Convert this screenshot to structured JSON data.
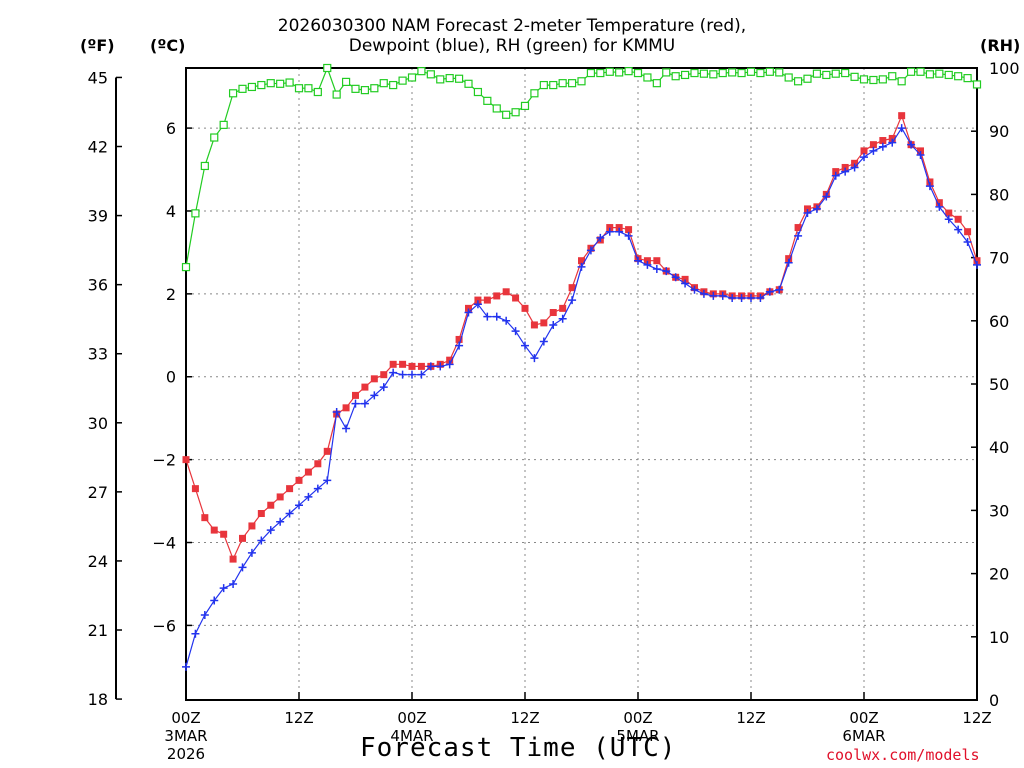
{
  "title": {
    "line1": "2026030300 NAM Forecast 2-meter Temperature (red),",
    "line2": "Dewpoint (blue), RH (green) for KMMU"
  },
  "units": {
    "fahrenheit": "(ºF)",
    "celsius": "(ºC)",
    "rh": "(RH)"
  },
  "credit": "coolwx.com/models",
  "colors": {
    "temperature": "#e8353c",
    "dewpoint": "#2233ee",
    "rh": "#22cc22",
    "grid": "#888888"
  },
  "chart_data": {
    "type": "line",
    "title": "2026030300 NAM Forecast 2-meter Temperature (red), Dewpoint (blue), RH (green) for KMMU",
    "xlabel": "Forecast Time (UTC)",
    "x_unit": "forecast hour from 2026-03-03 00Z",
    "xlim": [
      0,
      84
    ],
    "x_ticks": [
      {
        "x": 0,
        "label": "00Z",
        "date": "3MAR",
        "year": "2026"
      },
      {
        "x": 12,
        "label": "12Z"
      },
      {
        "x": 24,
        "label": "00Z",
        "date": "4MAR"
      },
      {
        "x": 36,
        "label": "12Z"
      },
      {
        "x": 48,
        "label": "00Z",
        "date": "5MAR"
      },
      {
        "x": 60,
        "label": "12Z"
      },
      {
        "x": 72,
        "label": "00Z",
        "date": "6MAR"
      },
      {
        "x": 84,
        "label": "12Z"
      }
    ],
    "y_left_celsius": {
      "ylim": [
        -7.8,
        7.45
      ],
      "ticks": [
        -6,
        -4,
        -2,
        0,
        2,
        4,
        6
      ]
    },
    "y_left_fahrenheit": {
      "ticks": [
        18,
        21,
        24,
        27,
        30,
        33,
        36,
        39,
        42,
        45
      ]
    },
    "y_right_rh": {
      "ylim": [
        0,
        100
      ],
      "ticks": [
        0,
        10,
        20,
        30,
        40,
        50,
        60,
        70,
        80,
        90,
        100
      ]
    },
    "grid": true,
    "series": [
      {
        "name": "Temperature",
        "unit": "°C",
        "axis": "left",
        "color": "#e8353c",
        "marker": "square",
        "x": [
          0,
          1,
          2,
          3,
          4,
          5,
          6,
          7,
          8,
          9,
          10,
          11,
          12,
          13,
          14,
          15,
          16,
          17,
          18,
          19,
          20,
          21,
          22,
          23,
          24,
          25,
          26,
          27,
          28,
          29,
          30,
          31,
          32,
          33,
          34,
          35,
          36,
          37,
          38,
          39,
          40,
          41,
          42,
          43,
          44,
          45,
          46,
          47,
          48,
          49,
          50,
          51,
          52,
          53,
          54,
          55,
          56,
          57,
          58,
          59,
          60,
          61,
          62,
          63,
          64,
          65,
          66,
          67,
          68,
          69,
          70,
          71,
          72,
          73,
          74,
          75,
          76,
          77,
          78,
          79,
          80,
          81,
          82,
          83,
          84
        ],
        "values": [
          -2.0,
          -2.7,
          -3.4,
          -3.7,
          -3.8,
          -4.4,
          -3.9,
          -3.6,
          -3.3,
          -3.1,
          -2.9,
          -2.7,
          -2.5,
          -2.3,
          -2.1,
          -1.8,
          -0.9,
          -0.75,
          -0.45,
          -0.25,
          -0.05,
          0.05,
          0.3,
          0.3,
          0.25,
          0.25,
          0.25,
          0.3,
          0.4,
          0.9,
          1.65,
          1.85,
          1.85,
          1.95,
          2.05,
          1.9,
          1.65,
          1.25,
          1.3,
          1.55,
          1.65,
          2.15,
          2.8,
          3.1,
          3.3,
          3.6,
          3.6,
          3.55,
          2.85,
          2.8,
          2.8,
          2.55,
          2.4,
          2.35,
          2.15,
          2.05,
          2.0,
          2.0,
          1.95,
          1.95,
          1.95,
          1.95,
          2.05,
          2.1,
          2.85,
          3.6,
          4.05,
          4.1,
          4.4,
          4.95,
          5.05,
          5.15,
          5.45,
          5.6,
          5.7,
          5.75,
          6.3,
          5.6,
          5.45,
          4.7,
          4.2,
          3.95,
          3.8,
          3.5,
          2.8
        ]
      },
      {
        "name": "Dewpoint",
        "unit": "°C",
        "axis": "left",
        "color": "#2233ee",
        "marker": "plus",
        "x": [
          0,
          1,
          2,
          3,
          4,
          5,
          6,
          7,
          8,
          9,
          10,
          11,
          12,
          13,
          14,
          15,
          16,
          17,
          18,
          19,
          20,
          21,
          22,
          23,
          24,
          25,
          26,
          27,
          28,
          29,
          30,
          31,
          32,
          33,
          34,
          35,
          36,
          37,
          38,
          39,
          40,
          41,
          42,
          43,
          44,
          45,
          46,
          47,
          48,
          49,
          50,
          51,
          52,
          53,
          54,
          55,
          56,
          57,
          58,
          59,
          60,
          61,
          62,
          63,
          64,
          65,
          66,
          67,
          68,
          69,
          70,
          71,
          72,
          73,
          74,
          75,
          76,
          77,
          78,
          79,
          80,
          81,
          82,
          83,
          84
        ],
        "values": [
          -7.0,
          -6.2,
          -5.75,
          -5.4,
          -5.1,
          -5.0,
          -4.6,
          -4.25,
          -3.95,
          -3.7,
          -3.5,
          -3.3,
          -3.1,
          -2.9,
          -2.7,
          -2.5,
          -0.85,
          -1.25,
          -0.65,
          -0.65,
          -0.45,
          -0.25,
          0.1,
          0.05,
          0.05,
          0.05,
          0.25,
          0.25,
          0.3,
          0.75,
          1.55,
          1.75,
          1.45,
          1.45,
          1.35,
          1.1,
          0.75,
          0.45,
          0.85,
          1.25,
          1.4,
          1.85,
          2.65,
          3.05,
          3.35,
          3.5,
          3.5,
          3.4,
          2.8,
          2.7,
          2.6,
          2.55,
          2.4,
          2.25,
          2.1,
          2.0,
          1.95,
          1.95,
          1.9,
          1.9,
          1.9,
          1.9,
          2.05,
          2.1,
          2.75,
          3.4,
          3.95,
          4.05,
          4.35,
          4.85,
          4.95,
          5.05,
          5.3,
          5.45,
          5.55,
          5.65,
          6.0,
          5.6,
          5.35,
          4.6,
          4.1,
          3.8,
          3.55,
          3.25,
          2.7
        ]
      },
      {
        "name": "RH",
        "unit": "%",
        "axis": "right",
        "color": "#22cc22",
        "marker": "open-square",
        "x": [
          0,
          1,
          2,
          3,
          4,
          5,
          6,
          7,
          8,
          9,
          10,
          11,
          12,
          13,
          14,
          15,
          16,
          17,
          18,
          19,
          20,
          21,
          22,
          23,
          24,
          25,
          26,
          27,
          28,
          29,
          30,
          31,
          32,
          33,
          34,
          35,
          36,
          37,
          38,
          39,
          40,
          41,
          42,
          43,
          44,
          45,
          46,
          47,
          48,
          49,
          50,
          51,
          52,
          53,
          54,
          55,
          56,
          57,
          58,
          59,
          60,
          61,
          62,
          63,
          64,
          65,
          66,
          67,
          68,
          69,
          70,
          71,
          72,
          73,
          74,
          75,
          76,
          77,
          78,
          79,
          80,
          81,
          82,
          83,
          84
        ],
        "values": [
          68.5,
          77,
          84.5,
          89,
          91,
          96,
          96.7,
          97,
          97.3,
          97.6,
          97.5,
          97.7,
          96.8,
          96.8,
          96.2,
          100,
          95.8,
          97.8,
          96.7,
          96.5,
          96.8,
          97.6,
          97.3,
          98,
          98.5,
          99.5,
          99,
          98.2,
          98.4,
          98.3,
          97.5,
          96.2,
          94.8,
          93.6,
          92.6,
          93,
          94,
          96,
          97.3,
          97.3,
          97.6,
          97.6,
          97.9,
          99.2,
          99.2,
          99.4,
          99.3,
          99.5,
          99.2,
          98.5,
          97.6,
          99.3,
          98.7,
          98.9,
          99.2,
          99.1,
          99,
          99.2,
          99.3,
          99.2,
          99.4,
          99.2,
          99.4,
          99.3,
          98.5,
          97.9,
          98.3,
          99.1,
          98.9,
          99.1,
          99.2,
          98.6,
          98.2,
          98.1,
          98.2,
          98.7,
          97.9,
          99.4,
          99.4,
          99.0,
          99.1,
          98.9,
          98.7,
          98.4,
          97.4
        ]
      }
    ]
  }
}
